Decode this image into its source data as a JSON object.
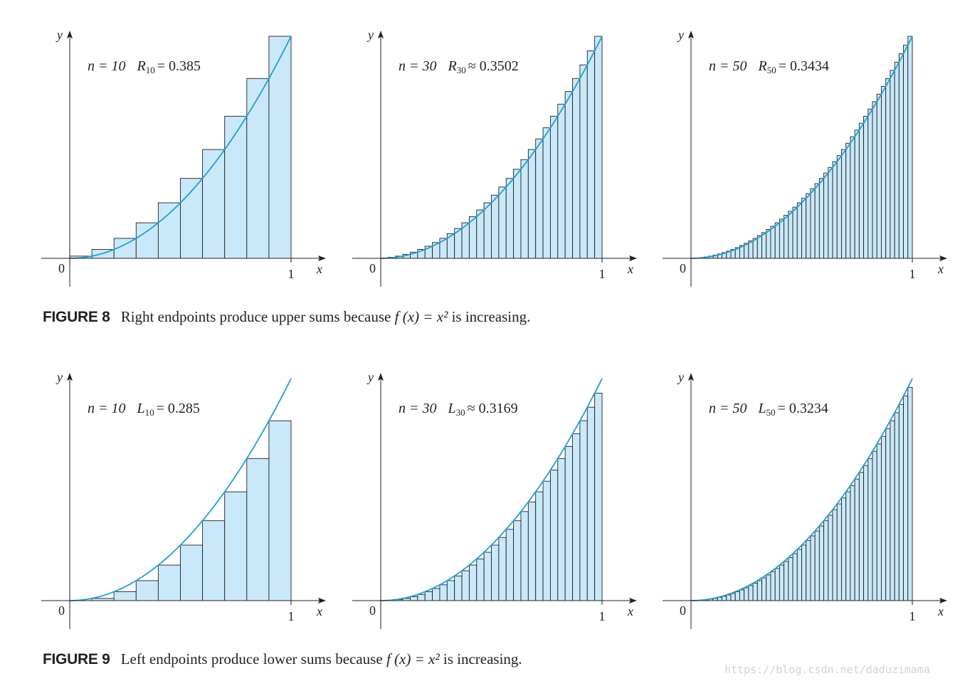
{
  "figures": [
    {
      "label": "FIGURE 8",
      "caption_before": "Right endpoints produce upper sums because",
      "caption_formula": "f (x) = x²",
      "caption_after": "is increasing.",
      "panels": [
        {
          "n_text": "n = 10",
          "sum_letter": "R",
          "sum_sub": "10",
          "sum_rel": "=",
          "sum_value": "0.385",
          "y_label": "y",
          "x_label": "x",
          "origin_label": "0",
          "one_label": "1"
        },
        {
          "n_text": "n = 30",
          "sum_letter": "R",
          "sum_sub": "30",
          "sum_rel": "≈",
          "sum_value": "0.3502",
          "y_label": "y",
          "x_label": "x",
          "origin_label": "0",
          "one_label": "1"
        },
        {
          "n_text": "n = 50",
          "sum_letter": "R",
          "sum_sub": "50",
          "sum_rel": "=",
          "sum_value": "0.3434",
          "y_label": "y",
          "x_label": "x",
          "origin_label": "0",
          "one_label": "1"
        }
      ]
    },
    {
      "label": "FIGURE 9",
      "caption_before": "Left endpoints produce lower sums because",
      "caption_formula": "f (x) = x²",
      "caption_after": "is increasing.",
      "panels": [
        {
          "n_text": "n = 10",
          "sum_letter": "L",
          "sum_sub": "10",
          "sum_rel": "=",
          "sum_value": "0.285",
          "y_label": "y",
          "x_label": "x",
          "origin_label": "0",
          "one_label": "1"
        },
        {
          "n_text": "n = 30",
          "sum_letter": "L",
          "sum_sub": "30",
          "sum_rel": "≈",
          "sum_value": "0.3169",
          "y_label": "y",
          "x_label": "x",
          "origin_label": "0",
          "one_label": "1"
        },
        {
          "n_text": "n = 50",
          "sum_letter": "L",
          "sum_sub": "50",
          "sum_rel": "=",
          "sum_value": "0.3234",
          "y_label": "y",
          "x_label": "x",
          "origin_label": "0",
          "one_label": "1"
        }
      ]
    }
  ],
  "chart_data": [
    {
      "type": "bar",
      "function": "x^2",
      "rule": "right",
      "n": 10,
      "xlim": [
        0,
        1
      ],
      "ylim": [
        0,
        1
      ]
    },
    {
      "type": "bar",
      "function": "x^2",
      "rule": "right",
      "n": 30,
      "xlim": [
        0,
        1
      ],
      "ylim": [
        0,
        1
      ]
    },
    {
      "type": "bar",
      "function": "x^2",
      "rule": "right",
      "n": 50,
      "xlim": [
        0,
        1
      ],
      "ylim": [
        0,
        1
      ]
    },
    {
      "type": "bar",
      "function": "x^2",
      "rule": "left",
      "n": 10,
      "xlim": [
        0,
        1
      ],
      "ylim": [
        0,
        1
      ]
    },
    {
      "type": "bar",
      "function": "x^2",
      "rule": "left",
      "n": 30,
      "xlim": [
        0,
        1
      ],
      "ylim": [
        0,
        1
      ]
    },
    {
      "type": "bar",
      "function": "x^2",
      "rule": "left",
      "n": 50,
      "xlim": [
        0,
        1
      ],
      "ylim": [
        0,
        1
      ]
    }
  ],
  "colors": {
    "bar_fill": "#c9e9fa",
    "curve": "#1f9fd6",
    "ink": "#231f20"
  },
  "watermark": "https://blog.csdn.net/daduzimama"
}
